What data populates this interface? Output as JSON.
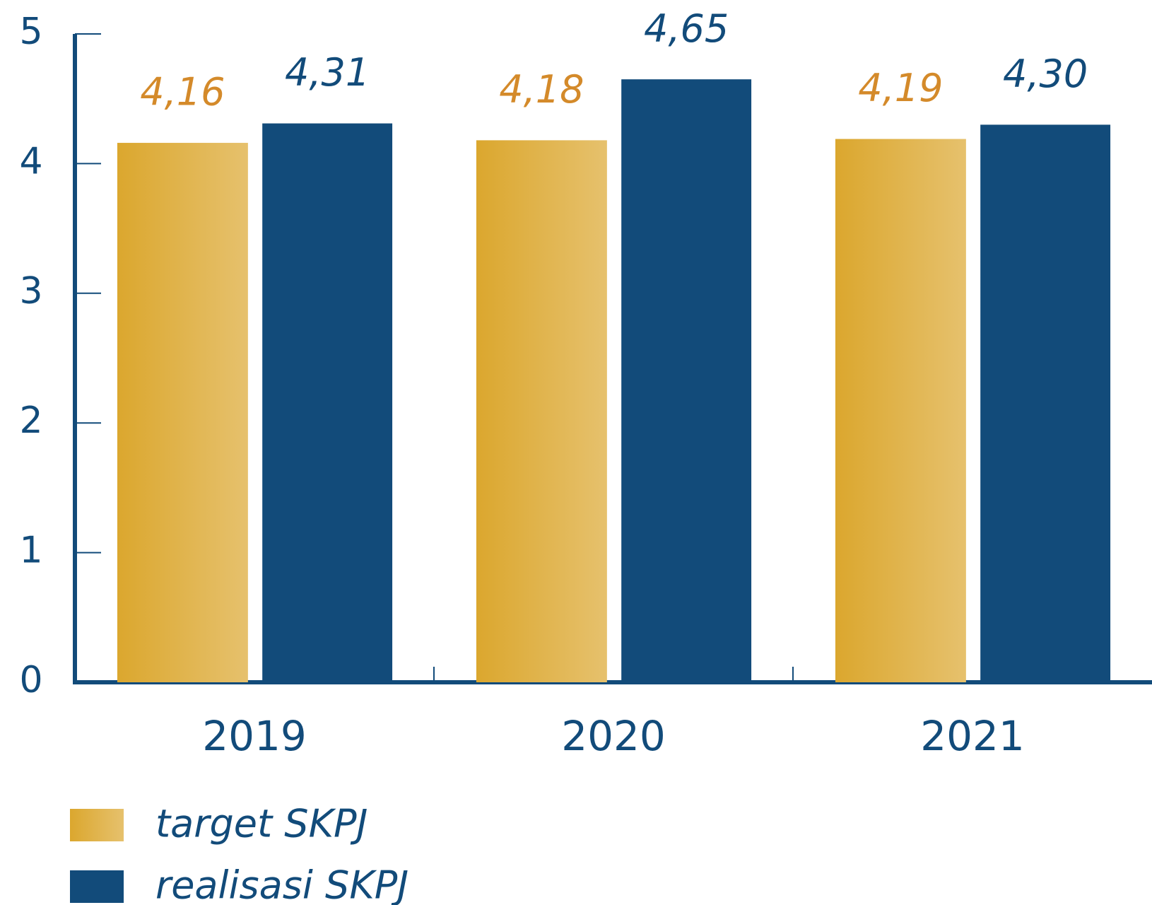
{
  "chart_data": {
    "type": "bar",
    "categories": [
      "2019",
      "2020",
      "2021"
    ],
    "series": [
      {
        "name": "target SKPJ",
        "color": "#dba72e",
        "label_color": "#d48a2a",
        "values": [
          4.16,
          4.18,
          4.19
        ],
        "value_labels": [
          "4,16",
          "4,18",
          "4,19"
        ]
      },
      {
        "name": "realisasi SKPJ",
        "color": "#124b7a",
        "label_color": "#124b7a",
        "values": [
          4.31,
          4.65,
          4.3
        ],
        "value_labels": [
          "4,31",
          "4,65",
          "4,30"
        ]
      }
    ],
    "ylim": [
      0,
      5
    ],
    "yticks": [
      0,
      1,
      2,
      3,
      4,
      5
    ],
    "axis_color": "#124b7a"
  }
}
